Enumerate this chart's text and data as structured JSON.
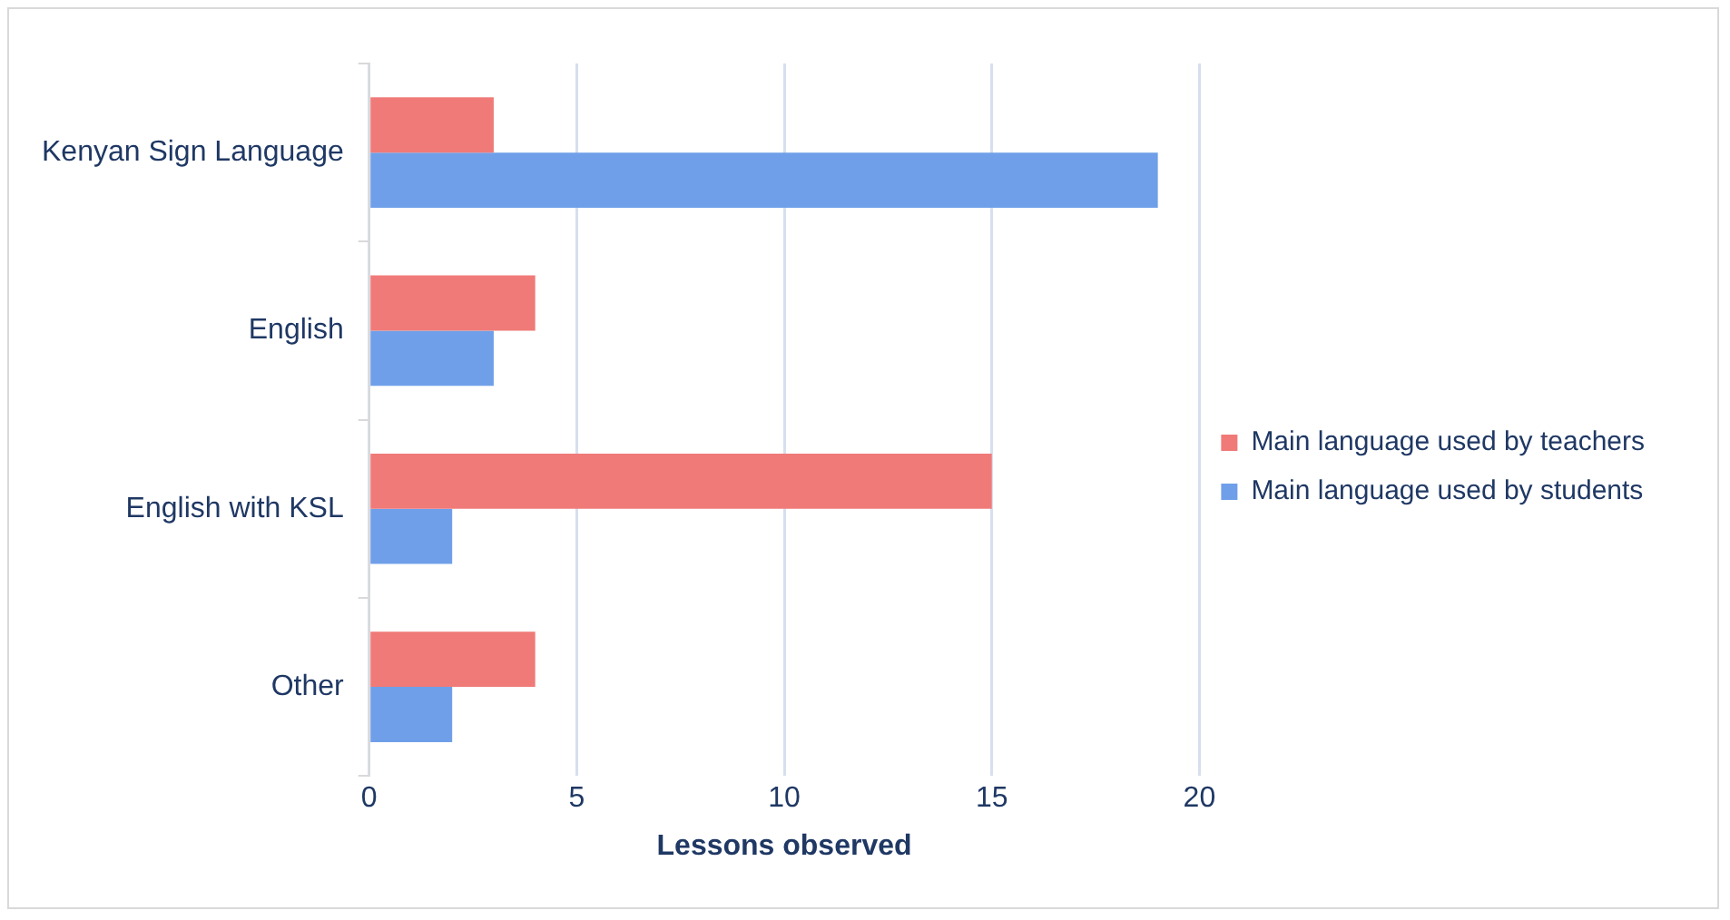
{
  "chart_data": {
    "type": "bar",
    "orientation": "horizontal",
    "xlabel": "Lessons observed",
    "categories": [
      "Kenyan Sign Language",
      "English",
      "English with KSL",
      "Other"
    ],
    "series": [
      {
        "name": "Main language used by teachers",
        "color": "#f07a78",
        "values": [
          3,
          4,
          15,
          4
        ]
      },
      {
        "name": "Main language used by students",
        "color": "#6f9fe8",
        "values": [
          19,
          3,
          2,
          2
        ]
      }
    ],
    "xlim": [
      0,
      20
    ],
    "xticks": [
      0,
      5,
      10,
      15,
      20
    ],
    "grid": "x",
    "legend": "right"
  }
}
